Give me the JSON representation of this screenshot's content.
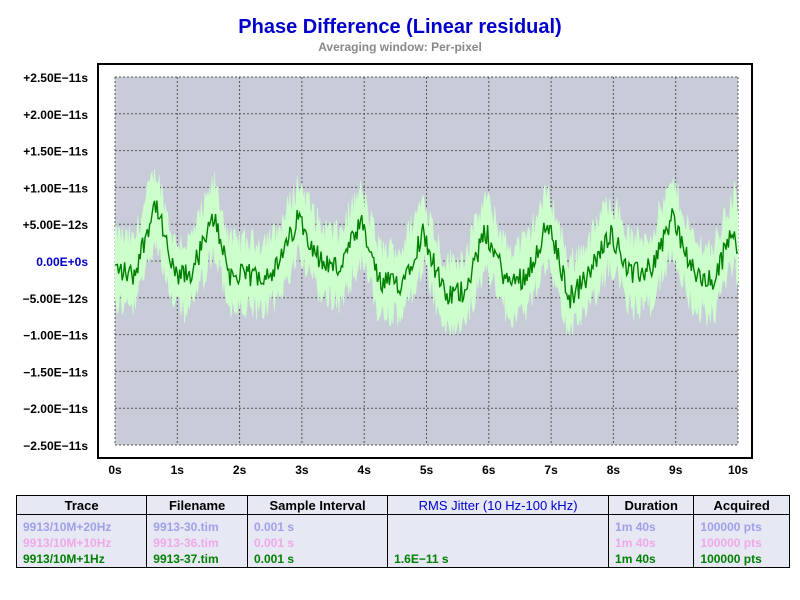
{
  "chart_data": {
    "type": "line",
    "title": "Phase Difference (Linear residual)",
    "subtitle": "Averaging window: Per-pixel",
    "xlabel": "",
    "ylabel": "",
    "xlim": [
      0,
      10
    ],
    "ylim": [
      -2.5e-11,
      2.5e-11
    ],
    "grid": true,
    "x_ticks": [
      "0s",
      "1s",
      "2s",
      "3s",
      "4s",
      "5s",
      "6s",
      "7s",
      "8s",
      "9s",
      "10s"
    ],
    "y_ticks": [
      {
        "value": 2.5e-11,
        "label": "+2.50E−11s"
      },
      {
        "value": 2e-11,
        "label": "+2.00E−11s"
      },
      {
        "value": 1.5e-11,
        "label": "+1.50E−11s"
      },
      {
        "value": 1e-11,
        "label": "+1.00E−11s"
      },
      {
        "value": 5e-12,
        "label": "+5.00E−12s"
      },
      {
        "value": 0,
        "label": "0.00E+0s"
      },
      {
        "value": -5e-12,
        "label": "−5.00E−12s"
      },
      {
        "value": -1e-11,
        "label": "−1.00E−11s"
      },
      {
        "value": -1.5e-11,
        "label": "−1.50E−11s"
      },
      {
        "value": -2e-11,
        "label": "−2.00E−11s"
      },
      {
        "value": -2.5e-11,
        "label": "−2.50E−11s"
      }
    ],
    "series": [
      {
        "name": "9913/10M+1Hz",
        "color": "#008000",
        "band_color": "#ccffcc",
        "band_min": -1e-11,
        "band_max": 1.25e-11,
        "x": [
          0,
          0.3,
          0.65,
          0.95,
          1.2,
          1.6,
          1.85,
          2.3,
          2.6,
          2.95,
          3.3,
          3.6,
          3.95,
          4.25,
          4.6,
          4.95,
          5.3,
          5.6,
          5.95,
          6.3,
          6.6,
          6.95,
          7.3,
          7.6,
          7.95,
          8.3,
          8.6,
          8.95,
          9.3,
          9.6,
          9.95,
          10
        ],
        "y": [
          -1e-12,
          -2e-12,
          8e-12,
          -2e-12,
          -2e-12,
          6e-12,
          -2e-12,
          -2e-12,
          -1e-12,
          6e-12,
          0,
          -1e-12,
          5e-12,
          -3e-12,
          -3e-12,
          4e-12,
          -5e-12,
          -4e-12,
          4e-12,
          -3e-12,
          -2e-12,
          5e-12,
          -5e-12,
          -2e-12,
          4e-12,
          -2e-12,
          -1e-12,
          6e-12,
          -2e-12,
          -3e-12,
          5e-12,
          1e-12
        ]
      }
    ]
  },
  "legend_table": {
    "headers": [
      "Trace",
      "Filename",
      "Sample Interval",
      "RMS Jitter (10 Hz-100 kHz)",
      "Duration",
      "Acquired"
    ],
    "rows": [
      {
        "trace": "9913/10M+20Hz",
        "filename": "9913-30.tim",
        "interval": "0.001 s",
        "jitter": "",
        "duration": "1m 40s",
        "acquired": "100000 pts",
        "color": "#a0a0e8"
      },
      {
        "trace": "9913/10M+10Hz",
        "filename": "9913-36.tim",
        "interval": "0.001 s",
        "jitter": "",
        "duration": "1m 40s",
        "acquired": "100000 pts",
        "color": "#f0a8e8"
      },
      {
        "trace": "9913/10M+1Hz",
        "filename": "9913-37.tim",
        "interval": "0.001 s",
        "jitter": "1.6E−11 s",
        "duration": "1m 40s",
        "acquired": "100000 pts",
        "color": "#008000"
      }
    ]
  }
}
